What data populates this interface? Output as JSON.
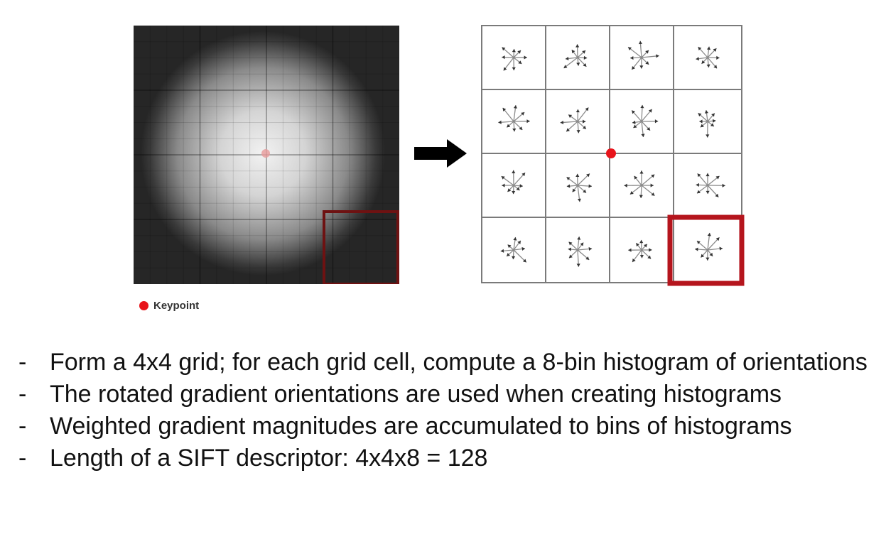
{
  "legend": {
    "label": "Keypoint",
    "dot_color": "#e8141b"
  },
  "grid": {
    "rows": 4,
    "cols": 4,
    "histogram_bins": 8
  },
  "highlight_color": "#b5151d",
  "bullets": [
    {
      "dash": "-",
      "text": "Form a 4x4 grid; for each grid cell, compute a 8-bin histogram of orientations"
    },
    {
      "dash": "-",
      "text": "The rotated gradient orientations are used when creating histograms"
    },
    {
      "dash": "-",
      "text": "Weighted gradient magnitudes are accumulated to bins of histograms"
    },
    {
      "dash": "-",
      "text": "Length of a SIFT descriptor: 4x4x8 = 128"
    }
  ]
}
